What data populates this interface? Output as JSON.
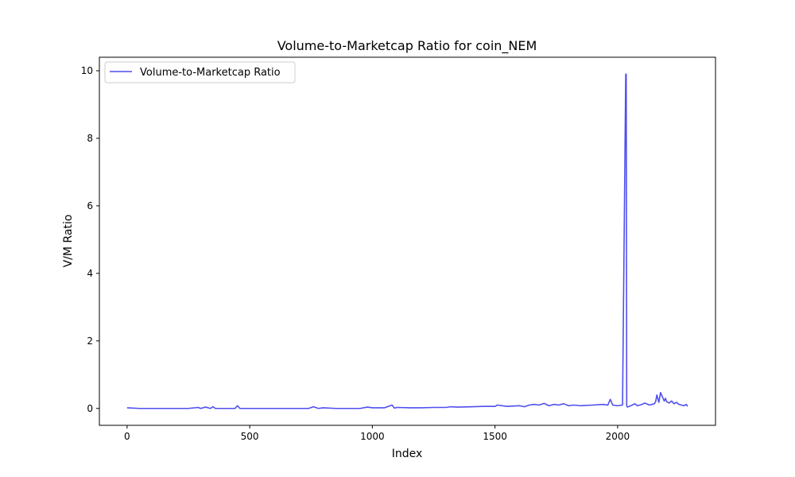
{
  "chart_data": {
    "type": "line",
    "title": "Volume-to-Marketcap Ratio for coin_NEM",
    "xlabel": "Index",
    "ylabel": "V/M Ratio",
    "xlim": [
      -113,
      2399
    ],
    "ylim": [
      -0.5,
      10.4
    ],
    "xticks": [
      0,
      500,
      1000,
      1500,
      2000
    ],
    "yticks": [
      0,
      2,
      4,
      6,
      8,
      10
    ],
    "grid": false,
    "legend_position": "upper-left",
    "color": "#4f4fef",
    "series": [
      {
        "name": "Volume-to-Marketcap Ratio",
        "x": [
          0,
          50,
          100,
          150,
          200,
          250,
          290,
          300,
          320,
          340,
          350,
          360,
          400,
          440,
          450,
          460,
          500,
          550,
          600,
          650,
          700,
          740,
          760,
          780,
          800,
          850,
          900,
          950,
          980,
          1000,
          1050,
          1080,
          1090,
          1100,
          1150,
          1200,
          1250,
          1300,
          1320,
          1350,
          1400,
          1450,
          1500,
          1510,
          1550,
          1600,
          1620,
          1640,
          1660,
          1680,
          1700,
          1720,
          1740,
          1760,
          1780,
          1800,
          1820,
          1850,
          1900,
          1940,
          1960,
          1970,
          1980,
          2000,
          2020,
          2033,
          2035,
          2037,
          2040,
          2060,
          2070,
          2080,
          2100,
          2110,
          2130,
          2150,
          2155,
          2160,
          2168,
          2175,
          2190,
          2195,
          2200,
          2210,
          2220,
          2230,
          2240,
          2250,
          2260,
          2270,
          2280,
          2285
        ],
        "y": [
          0.02,
          0.0,
          0.0,
          0.0,
          0.0,
          0.0,
          0.03,
          0.0,
          0.04,
          0.0,
          0.05,
          0.0,
          0.0,
          0.0,
          0.08,
          0.0,
          0.0,
          0.0,
          0.0,
          0.0,
          0.0,
          0.0,
          0.05,
          0.0,
          0.02,
          0.0,
          0.0,
          0.0,
          0.04,
          0.02,
          0.02,
          0.1,
          0.01,
          0.03,
          0.02,
          0.02,
          0.03,
          0.03,
          0.05,
          0.04,
          0.05,
          0.06,
          0.06,
          0.1,
          0.06,
          0.08,
          0.05,
          0.1,
          0.12,
          0.1,
          0.15,
          0.08,
          0.12,
          0.1,
          0.14,
          0.08,
          0.1,
          0.08,
          0.1,
          0.12,
          0.1,
          0.27,
          0.1,
          0.08,
          0.1,
          9.9,
          9.9,
          0.08,
          0.04,
          0.1,
          0.14,
          0.08,
          0.12,
          0.16,
          0.1,
          0.14,
          0.2,
          0.4,
          0.18,
          0.47,
          0.22,
          0.3,
          0.2,
          0.16,
          0.22,
          0.14,
          0.18,
          0.12,
          0.1,
          0.08,
          0.12,
          0.06
        ]
      }
    ]
  }
}
